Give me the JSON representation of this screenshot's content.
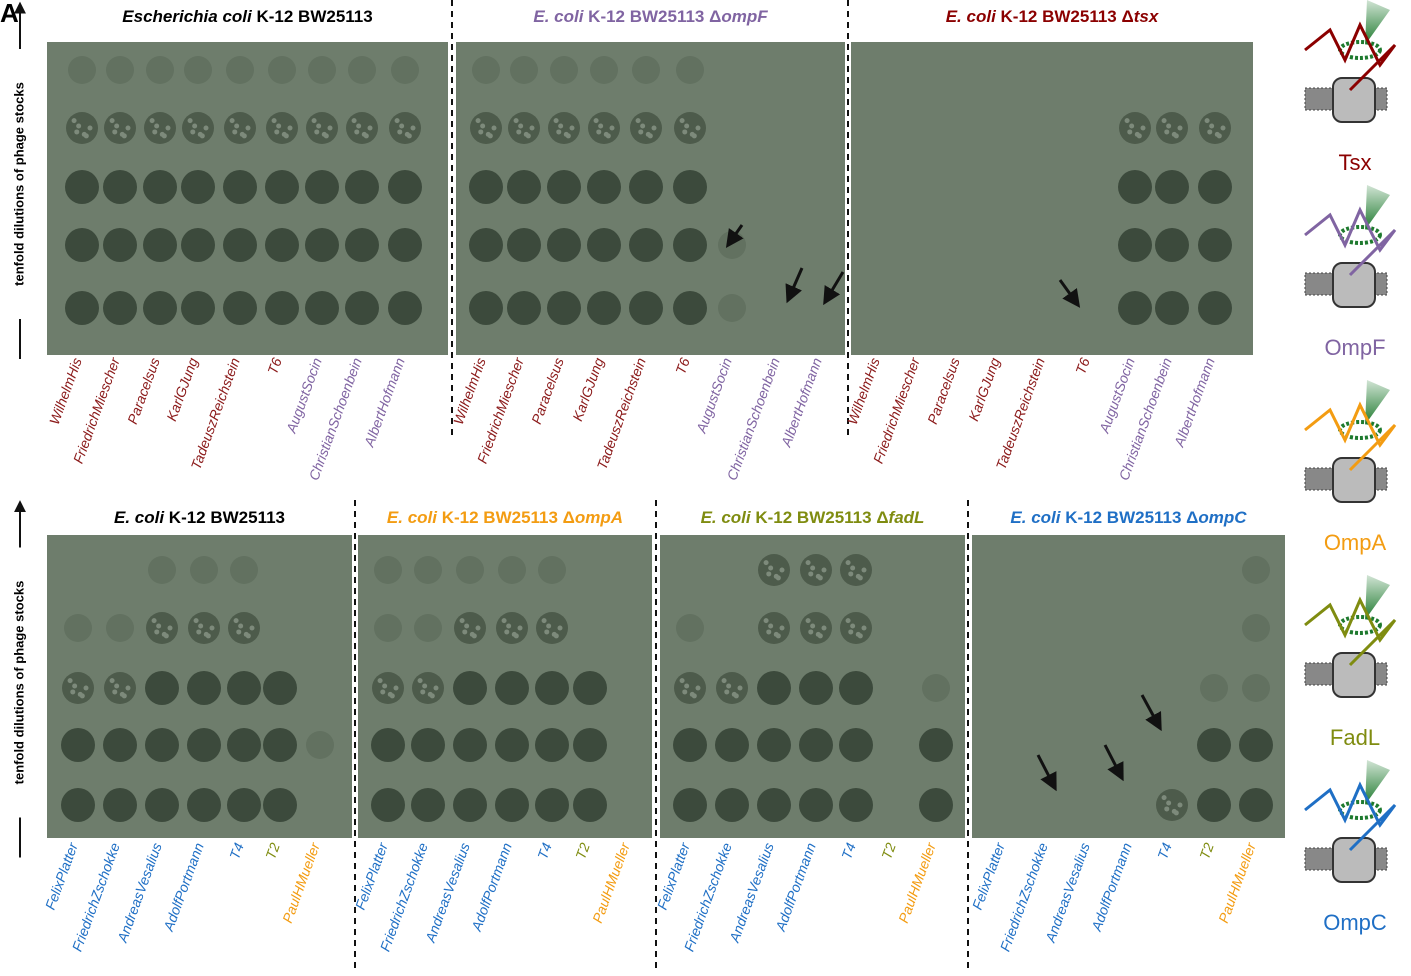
{
  "panel_label": "A",
  "y_axis_label": "tenfold dilutions of phage stocks",
  "rows": [
    {
      "phages": [
        {
          "name": "WilhelmHis",
          "color": "#8b1a1a"
        },
        {
          "name": "FriedrichMiescher",
          "color": "#8b1a1a"
        },
        {
          "name": "Paracelsus",
          "color": "#8b1a1a"
        },
        {
          "name": "KarlGJung",
          "color": "#8b1a1a"
        },
        {
          "name": "TadeuszReichstein",
          "color": "#8b1a1a"
        },
        {
          "name": "T6",
          "color": "#8b1a1a"
        },
        {
          "name": "AugustSocin",
          "color": "#8064a2"
        },
        {
          "name": "ChristianSchoenbein",
          "color": "#8064a2"
        },
        {
          "name": "AlbertHofmann",
          "color": "#8064a2"
        }
      ],
      "plates": [
        {
          "species": "Escherichia coli",
          "strain": " K-12 BW25113",
          "color": "#000000"
        },
        {
          "species": "E. coli",
          "strain": " K-12 BW25113 Δ",
          "gene": "ompF",
          "color": "#8064a2"
        },
        {
          "species": "E. coli",
          "strain": " K-12 BW25113 Δ",
          "gene": "tsx",
          "color": "#8b0000"
        }
      ]
    },
    {
      "phages": [
        {
          "name": "FelixPlatter",
          "color": "#1f6fc5"
        },
        {
          "name": "FriedrichZschokke",
          "color": "#1f6fc5"
        },
        {
          "name": "AndreasVesalius",
          "color": "#1f6fc5"
        },
        {
          "name": "AdolfPortmann",
          "color": "#1f6fc5"
        },
        {
          "name": "T4",
          "color": "#1f6fc5"
        },
        {
          "name": "T2",
          "color": "#7f8c10"
        },
        {
          "name": "PaulHMueller",
          "color": "#f39c12"
        }
      ],
      "plates": [
        {
          "species": "E. coli",
          "strain": " K-12 BW25113",
          "color": "#000000"
        },
        {
          "species": "E. coli",
          "strain": " K-12 BW25113 Δ",
          "gene": "ompA",
          "color": "#f39c12"
        },
        {
          "species": "E. coli",
          "strain": " K-12 BW25113 Δ",
          "gene": "fadL",
          "color": "#7f8c10"
        },
        {
          "species": "E. coli",
          "strain": " K-12 BW25113 Δ",
          "gene": "ompC",
          "color": "#1f6fc5"
        }
      ]
    }
  ],
  "receptors": [
    {
      "name": "Tsx",
      "color": "#8b0000"
    },
    {
      "name": "OmpF",
      "color": "#8064a2"
    },
    {
      "name": "OmpA",
      "color": "#f39c12"
    },
    {
      "name": "FadL",
      "color": "#7f8c10"
    },
    {
      "name": "OmpC",
      "color": "#1f6fc5"
    }
  ]
}
